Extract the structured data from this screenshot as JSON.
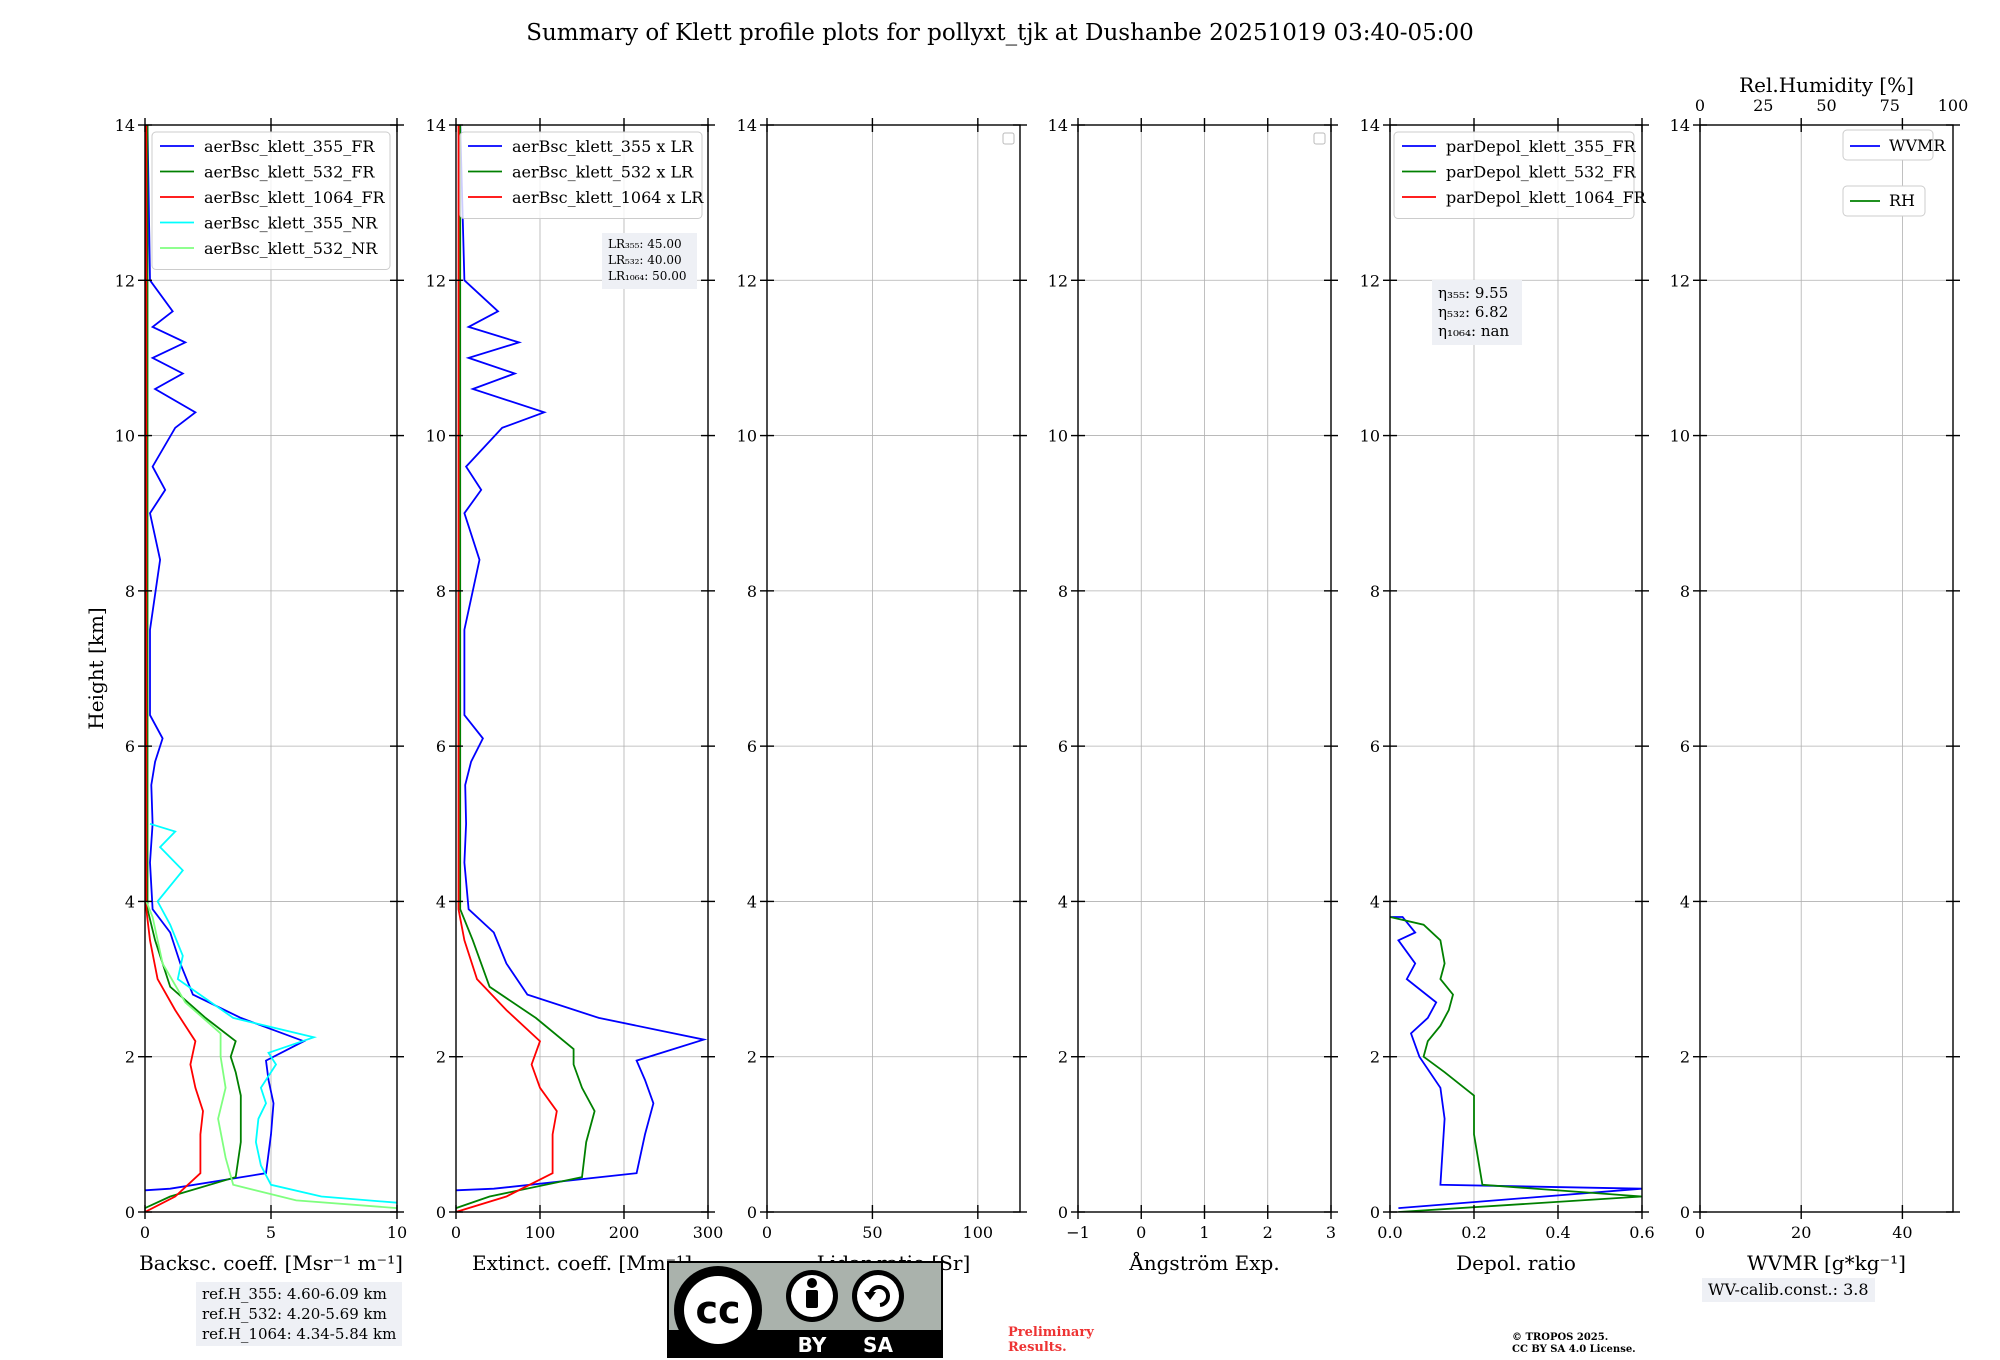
{
  "title": "Summary of Klett profile plots for pollyxt_tjk at Dushanbe 20251019 03:40-05:00",
  "colors": {
    "c355": "#0000ff",
    "c532": "#008000",
    "c1064": "#ff0000",
    "c355nr": "#00ffff",
    "c532nr": "#7fff7f",
    "rh": "#008000",
    "wvmr": "#0000ff"
  },
  "chart_data": [
    {
      "type": "line",
      "xlabel": "Backsc. coeff. [Msr⁻¹ m⁻¹]",
      "ylabel": "Height [km]",
      "xlim": [
        0,
        10
      ],
      "ylim": [
        0,
        14
      ],
      "xticks": [
        "0",
        "5",
        "10"
      ],
      "yticks": [
        "0",
        "2",
        "4",
        "6",
        "8",
        "10",
        "12",
        "14"
      ],
      "series": [
        {
          "name": "aerBsc_klett_355_FR",
          "color": "#0000ff",
          "points": [
            [
              0,
              0.28
            ],
            [
              1.0,
              0.3
            ],
            [
              4.8,
              0.5
            ],
            [
              5.0,
              1.0
            ],
            [
              5.1,
              1.4
            ],
            [
              4.9,
              1.7
            ],
            [
              4.8,
              1.95
            ],
            [
              6.3,
              2.2
            ],
            [
              3.8,
              2.5
            ],
            [
              1.9,
              2.8
            ],
            [
              1.4,
              3.2
            ],
            [
              1.0,
              3.6
            ],
            [
              0.3,
              3.9
            ],
            [
              0.2,
              4.5
            ],
            [
              0.3,
              5.0
            ],
            [
              0.25,
              5.5
            ],
            [
              0.4,
              5.8
            ],
            [
              0.7,
              6.1
            ],
            [
              0.2,
              6.4
            ],
            [
              0.2,
              7.5
            ],
            [
              0.6,
              8.4
            ],
            [
              0.2,
              9.0
            ],
            [
              0.8,
              9.3
            ],
            [
              0.3,
              9.6
            ],
            [
              1.2,
              10.1
            ],
            [
              2.0,
              10.3
            ],
            [
              0.4,
              10.6
            ],
            [
              1.5,
              10.8
            ],
            [
              0.3,
              11.0
            ],
            [
              1.6,
              11.2
            ],
            [
              0.3,
              11.4
            ],
            [
              1.1,
              11.6
            ],
            [
              0.2,
              12.0
            ],
            [
              0.1,
              14.0
            ]
          ]
        },
        {
          "name": "aerBsc_klett_532_FR",
          "color": "#008000",
          "points": [
            [
              0,
              0.05
            ],
            [
              1.0,
              0.2
            ],
            [
              3.6,
              0.45
            ],
            [
              3.8,
              0.9
            ],
            [
              3.8,
              1.5
            ],
            [
              3.6,
              1.8
            ],
            [
              3.4,
              2.0
            ],
            [
              3.6,
              2.2
            ],
            [
              2.4,
              2.5
            ],
            [
              1.0,
              2.9
            ],
            [
              0.4,
              3.5
            ],
            [
              0.1,
              3.9
            ],
            [
              0.1,
              14.0
            ]
          ]
        },
        {
          "name": "aerBsc_klett_1064_FR",
          "color": "#ff0000",
          "points": [
            [
              0,
              0.0
            ],
            [
              1.2,
              0.2
            ],
            [
              2.2,
              0.5
            ],
            [
              2.2,
              1.0
            ],
            [
              2.3,
              1.3
            ],
            [
              2.0,
              1.6
            ],
            [
              1.8,
              1.9
            ],
            [
              2.0,
              2.2
            ],
            [
              1.2,
              2.6
            ],
            [
              0.5,
              3.0
            ],
            [
              0.2,
              3.5
            ],
            [
              0.05,
              3.9
            ],
            [
              0.05,
              14.0
            ]
          ]
        },
        {
          "name": "aerBsc_klett_355_NR",
          "color": "#00ffff",
          "points": [
            [
              10,
              0.12
            ],
            [
              7.0,
              0.2
            ],
            [
              5.0,
              0.35
            ],
            [
              4.6,
              0.6
            ],
            [
              4.4,
              0.9
            ],
            [
              4.5,
              1.2
            ],
            [
              4.8,
              1.4
            ],
            [
              4.6,
              1.6
            ],
            [
              5.2,
              1.9
            ],
            [
              4.9,
              2.05
            ],
            [
              6.7,
              2.25
            ],
            [
              3.5,
              2.5
            ],
            [
              1.3,
              3.0
            ],
            [
              1.5,
              3.3
            ],
            [
              1.0,
              3.7
            ],
            [
              0.5,
              4.0
            ],
            [
              1.5,
              4.4
            ],
            [
              0.6,
              4.7
            ],
            [
              1.2,
              4.9
            ],
            [
              0.2,
              5.0
            ]
          ]
        },
        {
          "name": "aerBsc_klett_532_NR",
          "color": "#7fff7f",
          "points": [
            [
              10,
              0.05
            ],
            [
              6.0,
              0.15
            ],
            [
              3.5,
              0.35
            ],
            [
              3.2,
              0.7
            ],
            [
              2.9,
              1.2
            ],
            [
              3.2,
              1.6
            ],
            [
              3.0,
              2.0
            ],
            [
              3.0,
              2.3
            ],
            [
              1.6,
              2.7
            ],
            [
              0.7,
              3.2
            ],
            [
              0.3,
              3.8
            ],
            [
              0.05,
              4.0
            ]
          ]
        }
      ],
      "info": [
        "ref.H_355: 4.60-6.09 km",
        "ref.H_532: 4.20-5.69 km",
        "ref.H_1064: 4.34-5.84 km"
      ]
    },
    {
      "type": "line",
      "xlabel": "Extinct. coeff. [Mm⁻¹]",
      "xlim": [
        0,
        300
      ],
      "ylim": [
        0,
        14
      ],
      "xticks": [
        "0",
        "100",
        "200",
        "300"
      ],
      "yticks": [
        "0",
        "2",
        "4",
        "6",
        "8",
        "10",
        "12",
        "14"
      ],
      "series": [
        {
          "name": "aerBsc_klett_355 x LR",
          "color": "#0000ff",
          "points": [
            [
              0,
              0.28
            ],
            [
              45,
              0.3
            ],
            [
              215,
              0.5
            ],
            [
              225,
              1.0
            ],
            [
              235,
              1.4
            ],
            [
              225,
              1.7
            ],
            [
              215,
              1.95
            ],
            [
              295,
              2.22
            ],
            [
              170,
              2.5
            ],
            [
              85,
              2.8
            ],
            [
              60,
              3.2
            ],
            [
              45,
              3.6
            ],
            [
              15,
              3.9
            ],
            [
              10,
              4.5
            ],
            [
              12,
              5.0
            ],
            [
              11,
              5.5
            ],
            [
              18,
              5.8
            ],
            [
              32,
              6.1
            ],
            [
              10,
              6.4
            ],
            [
              10,
              7.5
            ],
            [
              28,
              8.4
            ],
            [
              10,
              9.0
            ],
            [
              30,
              9.3
            ],
            [
              12,
              9.6
            ],
            [
              55,
              10.1
            ],
            [
              105,
              10.3
            ],
            [
              20,
              10.6
            ],
            [
              70,
              10.8
            ],
            [
              15,
              11.0
            ],
            [
              75,
              11.2
            ],
            [
              15,
              11.4
            ],
            [
              50,
              11.6
            ],
            [
              10,
              12.0
            ],
            [
              5,
              14.0
            ]
          ]
        },
        {
          "name": "aerBsc_klett_532 x LR",
          "color": "#008000",
          "points": [
            [
              0,
              0.05
            ],
            [
              40,
              0.2
            ],
            [
              150,
              0.45
            ],
            [
              155,
              0.9
            ],
            [
              165,
              1.3
            ],
            [
              150,
              1.6
            ],
            [
              140,
              1.9
            ],
            [
              140,
              2.1
            ],
            [
              95,
              2.5
            ],
            [
              40,
              2.9
            ],
            [
              20,
              3.5
            ],
            [
              5,
              3.9
            ],
            [
              5,
              14.0
            ]
          ]
        },
        {
          "name": "aerBsc_klett_1064 x LR",
          "color": "#ff0000",
          "points": [
            [
              0,
              0.0
            ],
            [
              60,
              0.2
            ],
            [
              115,
              0.5
            ],
            [
              115,
              1.0
            ],
            [
              120,
              1.3
            ],
            [
              100,
              1.6
            ],
            [
              90,
              1.9
            ],
            [
              100,
              2.2
            ],
            [
              60,
              2.6
            ],
            [
              25,
              3.0
            ],
            [
              10,
              3.5
            ],
            [
              3,
              3.9
            ],
            [
              3,
              14.0
            ]
          ]
        }
      ],
      "info": [
        "LR₃₅₅: 45.00",
        "LR₅₃₂: 40.00",
        "LR₁₀₆₄: 50.00"
      ]
    },
    {
      "type": "line",
      "xlabel": "Lidar ratio [Sr]",
      "xlim": [
        0,
        120
      ],
      "ylim": [
        0,
        14
      ],
      "xticks": [
        "0",
        "50",
        "100"
      ],
      "yticks": [
        "0",
        "2",
        "4",
        "6",
        "8",
        "10",
        "12",
        "14"
      ],
      "series": []
    },
    {
      "type": "line",
      "xlabel": "Ångström Exp.",
      "xlim": [
        -1,
        3
      ],
      "ylim": [
        0,
        14
      ],
      "xticks": [
        "−1",
        "0",
        "1",
        "2",
        "3"
      ],
      "yticks": [
        "0",
        "2",
        "4",
        "6",
        "8",
        "10",
        "12",
        "14"
      ],
      "series": []
    },
    {
      "type": "line",
      "xlabel": "Depol. ratio",
      "xlim": [
        0,
        0.6
      ],
      "ylim": [
        0,
        14
      ],
      "xticks": [
        "0.0",
        "0.2",
        "0.4",
        "0.6"
      ],
      "yticks": [
        "0",
        "2",
        "4",
        "6",
        "8",
        "10",
        "12",
        "14"
      ],
      "series": [
        {
          "name": "parDepol_klett_355_FR",
          "color": "#0000ff",
          "points": [
            [
              0.02,
              0.05
            ],
            [
              0.6,
              0.3
            ],
            [
              0.12,
              0.35
            ],
            [
              0.13,
              1.2
            ],
            [
              0.12,
              1.6
            ],
            [
              0.07,
              2.0
            ],
            [
              0.05,
              2.3
            ],
            [
              0.09,
              2.5
            ],
            [
              0.11,
              2.7
            ],
            [
              0.04,
              3.0
            ],
            [
              0.06,
              3.2
            ],
            [
              0.02,
              3.5
            ],
            [
              0.06,
              3.6
            ],
            [
              0.03,
              3.8
            ],
            [
              0.0,
              3.8
            ]
          ]
        },
        {
          "name": "parDepol_klett_532_FR",
          "color": "#008000",
          "points": [
            [
              0.02,
              0.0
            ],
            [
              0.6,
              0.2
            ],
            [
              0.22,
              0.35
            ],
            [
              0.2,
              1.0
            ],
            [
              0.2,
              1.5
            ],
            [
              0.13,
              1.8
            ],
            [
              0.08,
              2.0
            ],
            [
              0.09,
              2.2
            ],
            [
              0.12,
              2.4
            ],
            [
              0.14,
              2.6
            ],
            [
              0.15,
              2.8
            ],
            [
              0.12,
              3.0
            ],
            [
              0.13,
              3.2
            ],
            [
              0.12,
              3.5
            ],
            [
              0.08,
              3.7
            ],
            [
              0.0,
              3.8
            ]
          ]
        },
        {
          "name": "parDepol_klett_1064_FR",
          "color": "#ff0000",
          "points": []
        }
      ],
      "info": [
        "η₃₅₅: 9.55",
        "η₅₃₂: 6.82",
        "η₁₀₆₄: nan"
      ]
    },
    {
      "type": "line",
      "xlabel": "WVMR [g*kg⁻¹]",
      "top_xlabel": "Rel.Humidity [%]",
      "xlim": [
        0,
        50
      ],
      "ylim": [
        0,
        14
      ],
      "xticks": [
        "0",
        "20",
        "40"
      ],
      "top_xticks": [
        "0",
        "25",
        "50",
        "75",
        "100"
      ],
      "yticks": [
        "0",
        "2",
        "4",
        "6",
        "8",
        "10",
        "12",
        "14"
      ],
      "series": [
        {
          "name": "WVMR",
          "color": "#0000ff",
          "points": []
        },
        {
          "name": "RH",
          "color": "#008000",
          "points": []
        }
      ],
      "info": [
        "WV-calib.const.: 3.8"
      ]
    }
  ],
  "license_badge": {
    "cc": "cc",
    "by": "BY",
    "sa": "SA"
  },
  "preliminary": [
    "Preliminary",
    "Results."
  ],
  "copyright": [
    "© TROPOS 2025.",
    "CC BY SA 4.0 License."
  ]
}
